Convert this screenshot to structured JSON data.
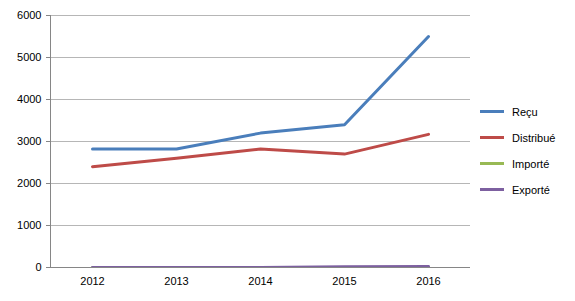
{
  "chart_data": {
    "type": "line",
    "categories": [
      "2012",
      "2013",
      "2014",
      "2015",
      "2016"
    ],
    "series": [
      {
        "name": "Reçu",
        "color": "#4a7ebb",
        "values": [
          2820,
          2820,
          3200,
          3400,
          5500
        ]
      },
      {
        "name": "Distribué",
        "color": "#be4b48",
        "values": [
          2400,
          2600,
          2820,
          2700,
          3170
        ]
      },
      {
        "name": "Importé",
        "color": "#98b954",
        "values": [
          0,
          0,
          0,
          0,
          0
        ]
      },
      {
        "name": "Exporté",
        "color": "#7d60a0",
        "values": [
          0,
          0,
          0,
          20,
          25
        ]
      }
    ],
    "ylim": [
      0,
      6000
    ],
    "yticks": [
      0,
      1000,
      2000,
      3000,
      4000,
      5000,
      6000
    ],
    "grid": true,
    "legend": "right"
  }
}
